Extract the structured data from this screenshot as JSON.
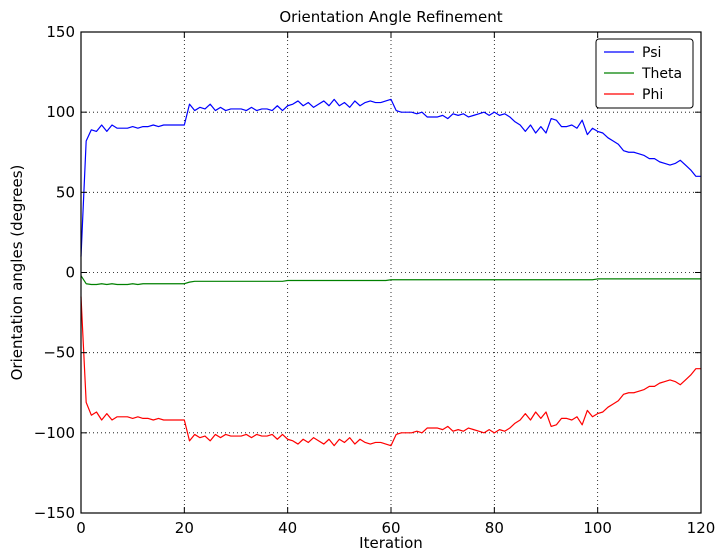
{
  "chart_data": {
    "type": "line",
    "title": "Orientation Angle Refinement",
    "xlabel": "Iteration",
    "ylabel": "Orientation angles (degrees)",
    "xlim": [
      0,
      120
    ],
    "ylim": [
      -150,
      150
    ],
    "xticks": [
      0,
      20,
      40,
      60,
      80,
      100,
      120
    ],
    "yticks": [
      -150,
      -100,
      -50,
      0,
      50,
      100,
      150
    ],
    "ytick_labels": [
      "−150",
      "−100",
      "−50",
      "0",
      "50",
      "100",
      "150"
    ],
    "grid": true,
    "legend_position": "top-right",
    "x": [
      0,
      1,
      2,
      3,
      4,
      5,
      6,
      7,
      8,
      9,
      10,
      11,
      12,
      13,
      14,
      15,
      16,
      17,
      18,
      19,
      20,
      21,
      22,
      23,
      24,
      25,
      26,
      27,
      28,
      29,
      30,
      31,
      32,
      33,
      34,
      35,
      36,
      37,
      38,
      39,
      40,
      41,
      42,
      43,
      44,
      45,
      46,
      47,
      48,
      49,
      50,
      51,
      52,
      53,
      54,
      55,
      56,
      57,
      58,
      59,
      60,
      61,
      62,
      63,
      64,
      65,
      66,
      67,
      68,
      69,
      70,
      71,
      72,
      73,
      74,
      75,
      76,
      77,
      78,
      79,
      80,
      81,
      82,
      83,
      84,
      85,
      86,
      87,
      88,
      89,
      90,
      91,
      92,
      93,
      94,
      95,
      96,
      97,
      98,
      99,
      100,
      101,
      102,
      103,
      104,
      105,
      106,
      107,
      108,
      109,
      110,
      111,
      112,
      113,
      114,
      115,
      116,
      117,
      118,
      119,
      120
    ],
    "series": [
      {
        "name": "Psi",
        "color": "#0000ff",
        "values": [
          10,
          82,
          89,
          88,
          92,
          88,
          92,
          90,
          90,
          90,
          91,
          90,
          91,
          91,
          92,
          91,
          92,
          92,
          92,
          92,
          92,
          105,
          101,
          103,
          102,
          105,
          101,
          103,
          101,
          102,
          102,
          102,
          101,
          103,
          101,
          102,
          102,
          101,
          104,
          101,
          104,
          105,
          107,
          104,
          106,
          103,
          105,
          107,
          104,
          108,
          104,
          106,
          103,
          107,
          104,
          106,
          107,
          106,
          106,
          107,
          108,
          101,
          100,
          100,
          100,
          99,
          100,
          97,
          97,
          97,
          98,
          96,
          99,
          98,
          99,
          97,
          98,
          99,
          100,
          98,
          100,
          98,
          99,
          97,
          94,
          92,
          88,
          92,
          87,
          91,
          87,
          96,
          95,
          91,
          91,
          92,
          90,
          95,
          86,
          90,
          88,
          87,
          84,
          82,
          80,
          76,
          75,
          75,
          74,
          73,
          71,
          71,
          69,
          68,
          67,
          68,
          70,
          67,
          64,
          60,
          60
        ]
      },
      {
        "name": "Theta",
        "color": "#008000",
        "values": [
          -2,
          -7,
          -7.5,
          -7.5,
          -7,
          -7.5,
          -7,
          -7.5,
          -7.5,
          -7.5,
          -7,
          -7.5,
          -7,
          -7,
          -7,
          -7,
          -7,
          -7,
          -7,
          -7,
          -7,
          -6,
          -5.5,
          -5.5,
          -5.5,
          -5.5,
          -5.5,
          -5.5,
          -5.5,
          -5.5,
          -5.5,
          -5.5,
          -5.5,
          -5.5,
          -5.5,
          -5.5,
          -5.5,
          -5.5,
          -5.5,
          -5.5,
          -5,
          -5,
          -5,
          -5,
          -5,
          -5,
          -5,
          -5,
          -5,
          -5,
          -5,
          -5,
          -5,
          -5,
          -5,
          -5,
          -5,
          -5,
          -5,
          -5,
          -4.5,
          -4.5,
          -4.5,
          -4.5,
          -4.5,
          -4.5,
          -4.5,
          -4.5,
          -4.5,
          -4.5,
          -4.5,
          -4.5,
          -4.5,
          -4.5,
          -4.5,
          -4.5,
          -4.5,
          -4.5,
          -4.5,
          -4.5,
          -4.5,
          -4.5,
          -4.5,
          -4.5,
          -4.5,
          -4.5,
          -4.5,
          -4.5,
          -4.5,
          -4.5,
          -4.5,
          -4.5,
          -4.5,
          -4.5,
          -4.5,
          -4.5,
          -4.5,
          -4.5,
          -4.5,
          -4.5,
          -4,
          -4,
          -4,
          -4,
          -4,
          -4,
          -4,
          -4,
          -4,
          -4,
          -4,
          -4,
          -4,
          -4,
          -4,
          -4,
          -4,
          -4,
          -4,
          -4,
          -4
        ]
      },
      {
        "name": "Phi",
        "color": "#ff0000",
        "values": [
          -15,
          -81,
          -89,
          -87,
          -92,
          -88,
          -92,
          -90,
          -90,
          -90,
          -91,
          -90,
          -91,
          -91,
          -92,
          -91,
          -92,
          -92,
          -92,
          -92,
          -92,
          -105,
          -101,
          -103,
          -102,
          -105,
          -101,
          -103,
          -101,
          -102,
          -102,
          -102,
          -101,
          -103,
          -101,
          -102,
          -102,
          -101,
          -104,
          -101,
          -104,
          -105,
          -107,
          -104,
          -106,
          -103,
          -105,
          -107,
          -104,
          -108,
          -104,
          -106,
          -103,
          -107,
          -104,
          -106,
          -107,
          -106,
          -106,
          -107,
          -108,
          -101,
          -100,
          -100,
          -100,
          -99,
          -100,
          -97,
          -97,
          -97,
          -98,
          -96,
          -99,
          -98,
          -99,
          -97,
          -98,
          -99,
          -100,
          -98,
          -100,
          -98,
          -99,
          -97,
          -94,
          -92,
          -88,
          -92,
          -87,
          -91,
          -87,
          -96,
          -95,
          -91,
          -91,
          -92,
          -90,
          -95,
          -86,
          -90,
          -88,
          -87,
          -84,
          -82,
          -80,
          -76,
          -75,
          -75,
          -74,
          -73,
          -71,
          -71,
          -69,
          -68,
          -67,
          -68,
          -70,
          -67,
          -64,
          -60,
          -60
        ]
      }
    ]
  }
}
